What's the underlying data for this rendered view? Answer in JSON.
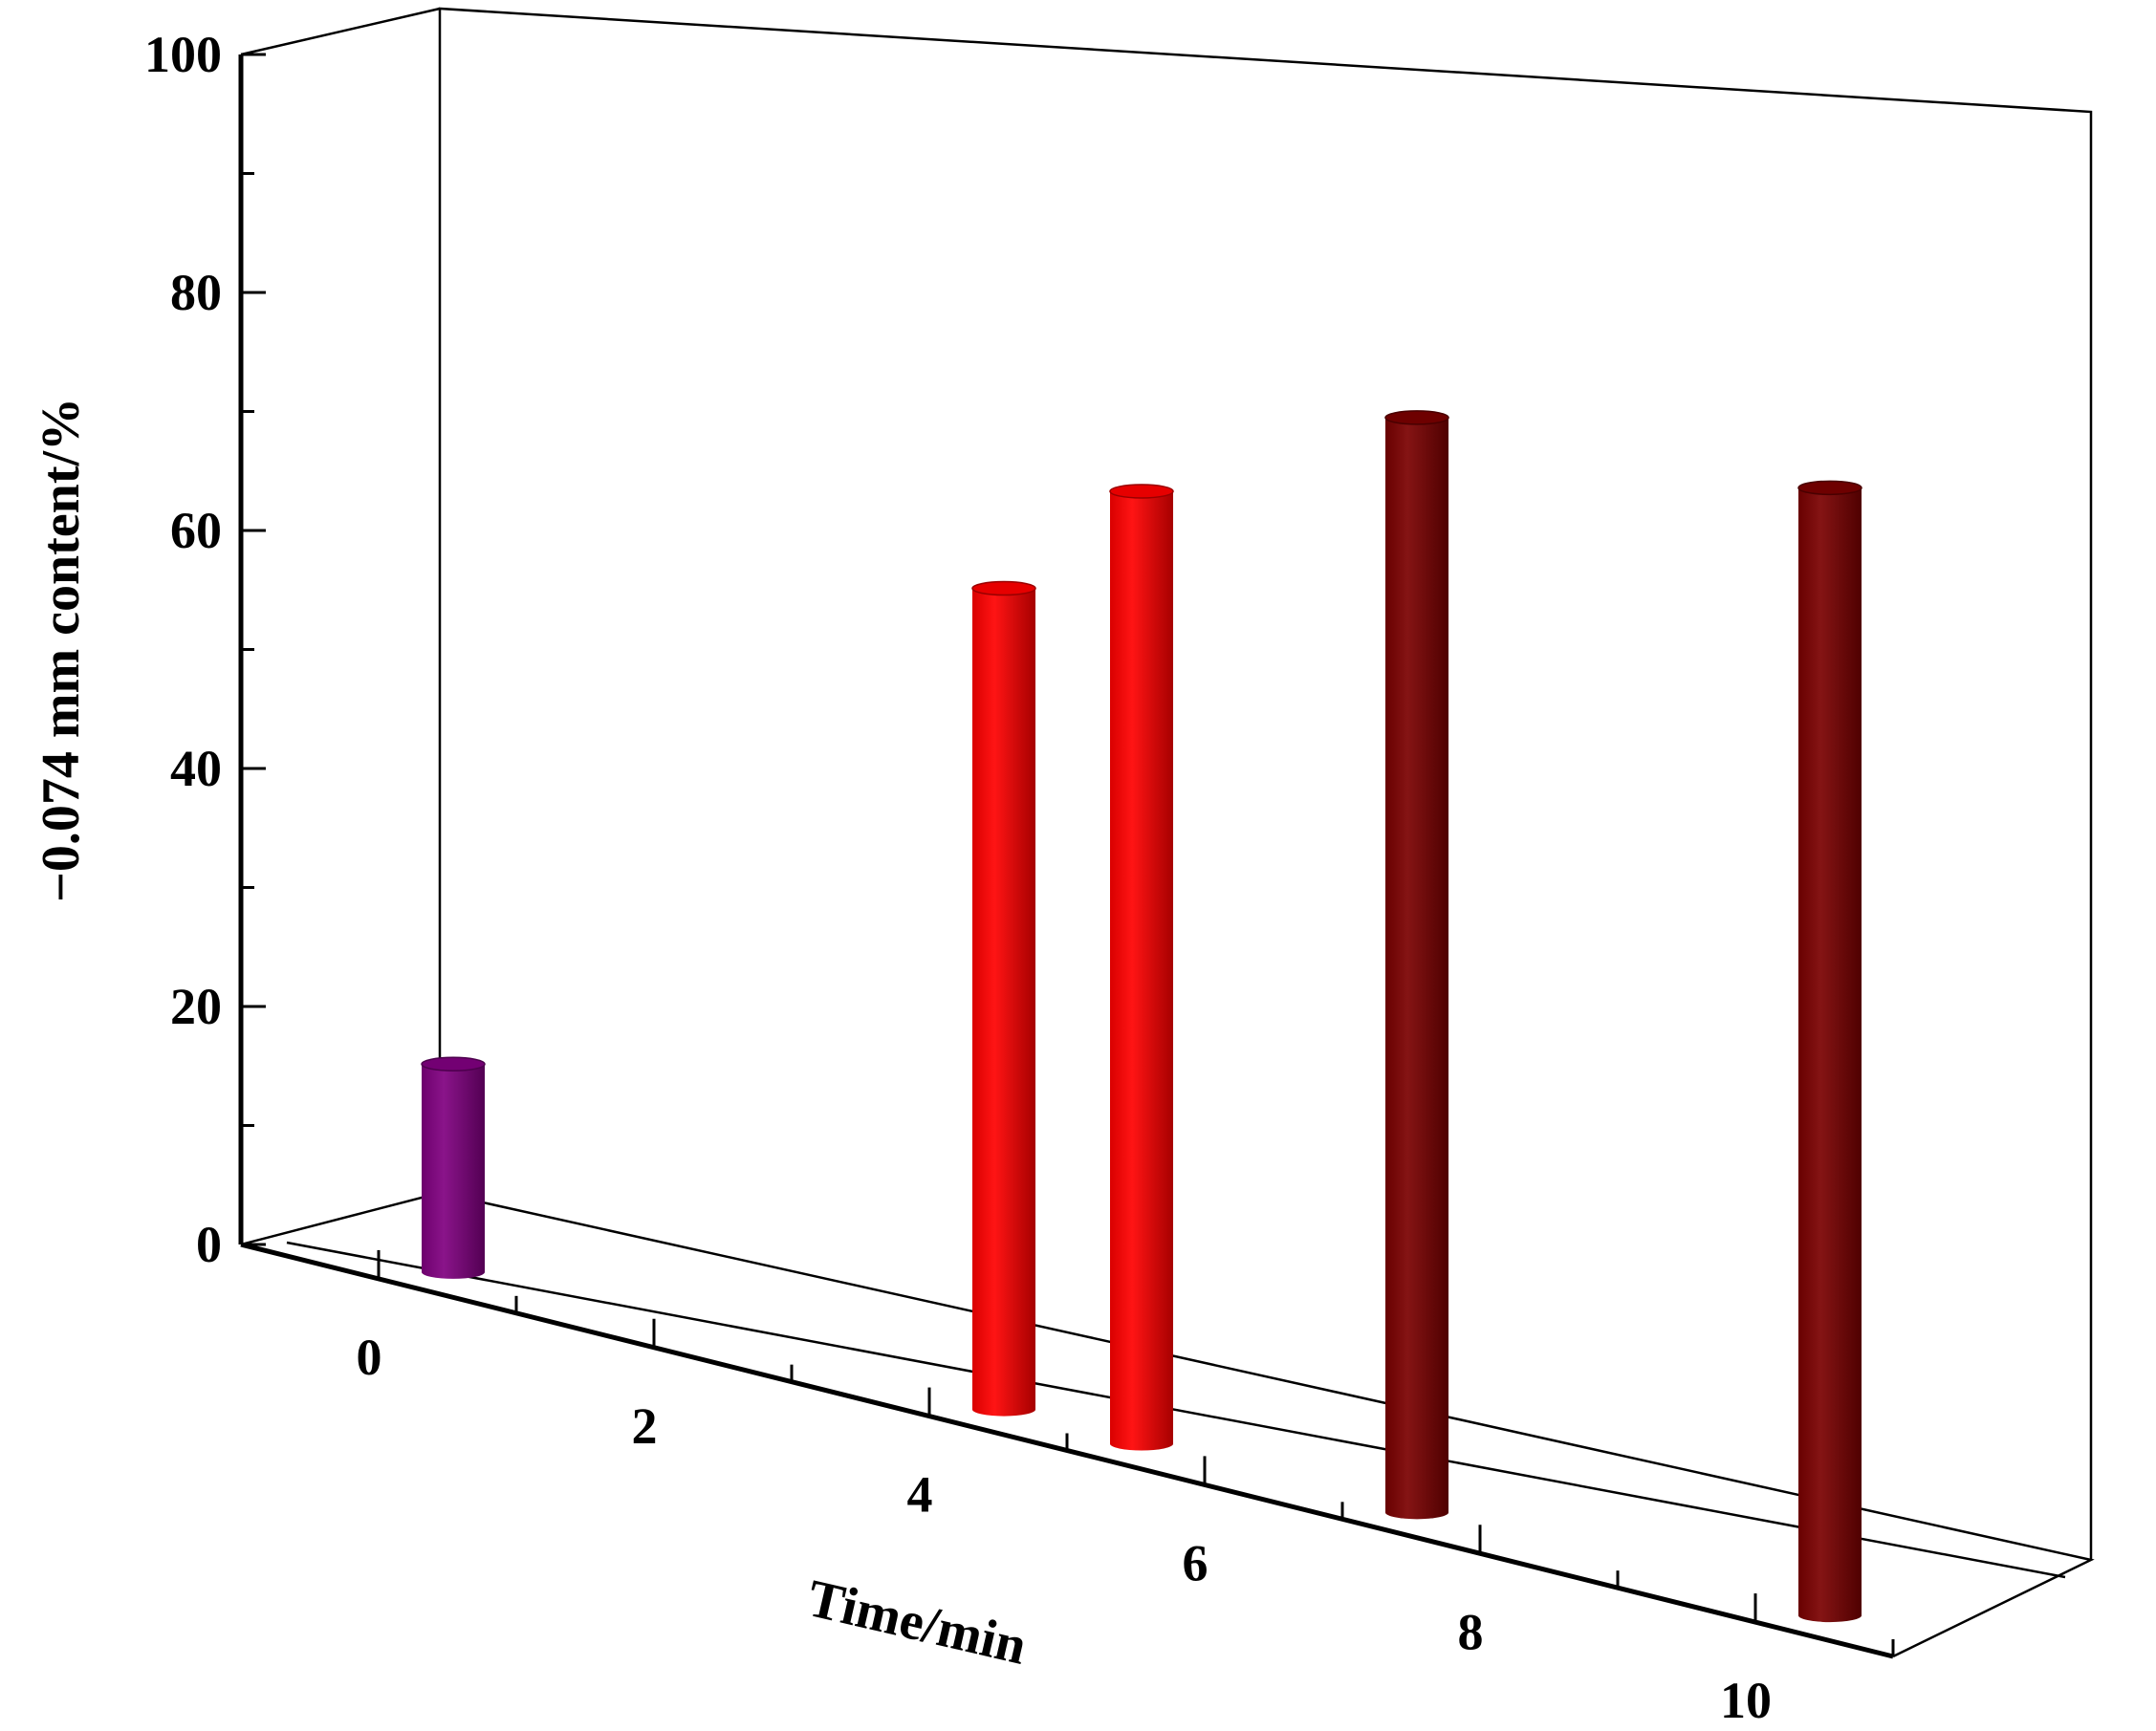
{
  "chart_data": {
    "type": "bar",
    "style": "3d-cylinder",
    "xlabel": "Time/min",
    "ylabel": "−0.074 mm content/%",
    "ylim": [
      0,
      100
    ],
    "xlim": [
      -1,
      11
    ],
    "yticks": [
      "0",
      "20",
      "40",
      "60",
      "80",
      "100"
    ],
    "xticks": [
      "0",
      "2",
      "4",
      "6",
      "8",
      "10"
    ],
    "grid": false,
    "legend": "none",
    "bars": [
      {
        "x": 0,
        "value": 19,
        "color": "#800080"
      },
      {
        "x": 4,
        "value": 75,
        "color": "#ff0000"
      },
      {
        "x": 5,
        "value": 87,
        "color": "#ff0000"
      },
      {
        "x": 7,
        "value": 100,
        "color": "#7a0000"
      },
      {
        "x": 10,
        "value": 103,
        "color": "#7a0000"
      }
    ]
  }
}
